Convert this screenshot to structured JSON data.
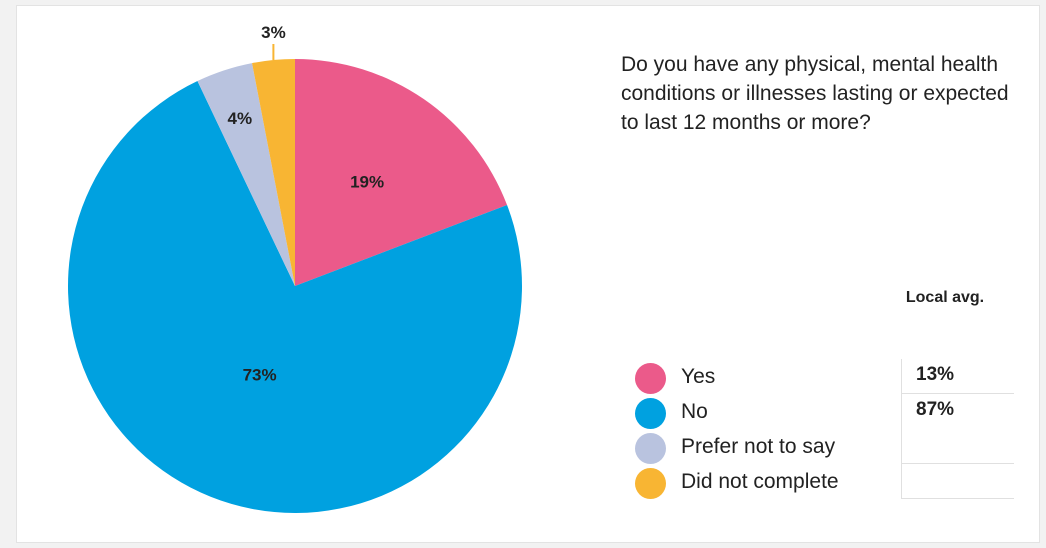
{
  "chart_data": {
    "type": "pie",
    "title": "Do you have any physical, mental health conditions or illnesses lasting or expected to last 12 months or more?",
    "slices": [
      {
        "label": "Yes",
        "value": 19,
        "display": "19%",
        "color": "#eb5a8a"
      },
      {
        "label": "No",
        "value": 73,
        "display": "73%",
        "color": "#00a1e0"
      },
      {
        "label": "Prefer not to say",
        "value": 4,
        "display": "4%",
        "color": "#b9c3df"
      },
      {
        "label": "Did not complete",
        "value": 3,
        "display": "3%",
        "color": "#f8b533"
      }
    ],
    "local_avg_header": "Local avg.",
    "local_avg": [
      "13%",
      "87%",
      "",
      ""
    ]
  }
}
